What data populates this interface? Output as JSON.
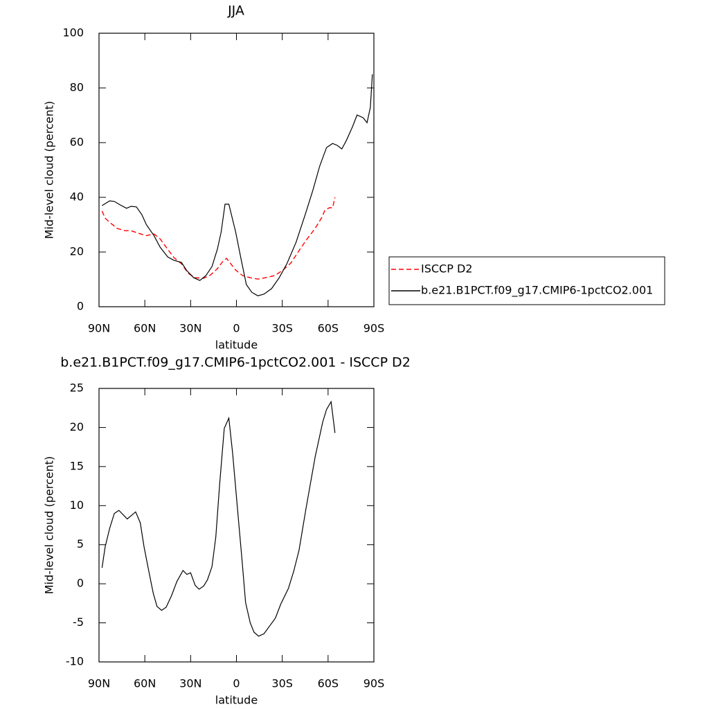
{
  "chart_data": [
    {
      "type": "line",
      "title": "JJA",
      "x_label": "latitude",
      "y_label": "Mid-level cloud (percent)",
      "xlim": [
        90,
        -90
      ],
      "xticks": [
        {
          "value": 90,
          "label": "90N"
        },
        {
          "value": 60,
          "label": "60N"
        },
        {
          "value": 30,
          "label": "30N"
        },
        0,
        {
          "value": -30,
          "label": "30S"
        },
        {
          "value": -60,
          "label": "60S"
        },
        {
          "value": -90,
          "label": "90S"
        }
      ],
      "ylim": [
        0,
        100
      ],
      "yticks": [
        0,
        20,
        40,
        60,
        80,
        100
      ],
      "legend": "outside-right",
      "series": [
        {
          "name": "ISCCP D2",
          "color": "#ff0000",
          "line_style": "dashed",
          "x": [
            88,
            86,
            82.5,
            78,
            73,
            69,
            64,
            59,
            54,
            50,
            45,
            41,
            36,
            31.5,
            27,
            21.5,
            17,
            12.5,
            9,
            6.5,
            4,
            0.5,
            -4,
            -9,
            -14,
            -19,
            -25,
            -30,
            -35.5,
            -41,
            -46,
            -51.5,
            -56,
            -58,
            -61,
            -63,
            -64.5
          ],
          "values": [
            35,
            32.4,
            30.6,
            28.6,
            27.8,
            27.8,
            26.8,
            26,
            26.6,
            24.8,
            21,
            18,
            15.7,
            12.2,
            10.6,
            10.4,
            11.6,
            13.9,
            16.5,
            17.7,
            15.9,
            13.4,
            11.4,
            10.6,
            10.1,
            10.6,
            11.4,
            13.2,
            15.9,
            20.5,
            24.6,
            28.6,
            32.7,
            35.4,
            36.2,
            36.2,
            40
          ]
        },
        {
          "name": "b.e21.B1PCT.f09_g17.CMIP6-1pctCO2.001",
          "color": "#000000",
          "line_style": "solid",
          "x": [
            88,
            83,
            80,
            76,
            72,
            69,
            65.5,
            62,
            59,
            54,
            50,
            45,
            41,
            36,
            32.5,
            28,
            24,
            20,
            16,
            12.5,
            10,
            7.5,
            5,
            0.5,
            -3,
            -6.5,
            -10,
            -14,
            -18,
            -23,
            -28,
            -33,
            -39,
            -45,
            -50,
            -54.5,
            -59,
            -63,
            -66,
            -69,
            -72,
            -76,
            -79,
            -83,
            -85.5,
            -87.7,
            -89
          ],
          "values": [
            37,
            38.7,
            38.5,
            37.2,
            36,
            36.7,
            36.5,
            33.7,
            30,
            26,
            21.8,
            18.2,
            17,
            16.2,
            13.2,
            10.6,
            9.6,
            11.4,
            14.7,
            21,
            27.3,
            37.5,
            37.5,
            27.3,
            17.5,
            8.1,
            5.3,
            4,
            4.6,
            6.6,
            10.6,
            15.7,
            23.5,
            33.7,
            42.5,
            51.4,
            58.2,
            59.7,
            59,
            57.7,
            60.8,
            65.8,
            70.1,
            69.1,
            67.3,
            72.9,
            85
          ]
        }
      ]
    },
    {
      "type": "line",
      "title": "b.e21.B1PCT.f09_g17.CMIP6-1pctCO2.001 - ISCCP D2",
      "x_label": "latitude",
      "y_label": "Mid-level cloud (percent)",
      "xlim": [
        90,
        -90
      ],
      "xticks": [
        {
          "value": 90,
          "label": "90N"
        },
        {
          "value": 60,
          "label": "60N"
        },
        {
          "value": 30,
          "label": "30N"
        },
        0,
        {
          "value": -30,
          "label": "30S"
        },
        {
          "value": -60,
          "label": "60S"
        },
        {
          "value": -90,
          "label": "90S"
        }
      ],
      "ylim": [
        -10,
        25
      ],
      "yticks": [
        -10,
        -5,
        0,
        5,
        10,
        15,
        20,
        25
      ],
      "series": [
        {
          "color": "#000000",
          "line_style": "solid",
          "x": [
            88,
            86,
            83,
            80,
            77,
            71.5,
            66,
            63,
            60.5,
            58,
            54.5,
            52,
            49,
            46,
            42.5,
            39,
            35,
            32.5,
            30,
            27,
            24.5,
            21.5,
            19,
            16,
            13.5,
            11,
            8,
            5,
            2.5,
            -0.5,
            -3.5,
            -6,
            -9,
            -11.5,
            -14.5,
            -18,
            -21,
            -25.5,
            -29,
            -34,
            -37.5,
            -41,
            -45.5,
            -51.5,
            -56.5,
            -59,
            -62,
            -64.5
          ],
          "values": [
            2.05,
            4.7,
            7.1,
            9,
            9.4,
            8.3,
            9.2,
            7.8,
            4.7,
            2.2,
            -1.2,
            -2.9,
            -3.4,
            -3,
            -1.5,
            0.3,
            1.7,
            1.2,
            1.4,
            -0.2,
            -0.7,
            -0.3,
            0.5,
            2.2,
            6,
            12.7,
            19.9,
            21.2,
            16.7,
            10,
            3.4,
            -2.4,
            -5,
            -6.2,
            -6.7,
            -6.4,
            -5.6,
            -4.4,
            -2.6,
            -0.6,
            1.6,
            4.3,
            9.6,
            16.2,
            20.7,
            22.3,
            23.3,
            19.3
          ]
        }
      ]
    }
  ]
}
